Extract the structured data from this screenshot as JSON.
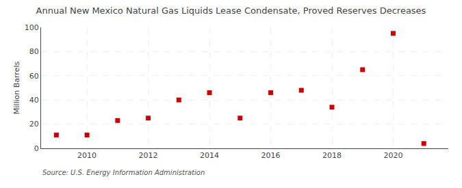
{
  "chart_data": {
    "type": "scatter",
    "title": "Annual New Mexico Natural Gas Liquids Lease Condensate, Proved Reserves Decreases",
    "ylabel": "Million Barrels",
    "annotation": "Source: U.S. Energy Information Administration",
    "x": [
      2009,
      2010,
      2011,
      2012,
      2013,
      2014,
      2015,
      2016,
      2017,
      2018,
      2019,
      2020,
      2021
    ],
    "values": [
      11,
      11,
      23,
      25,
      40,
      46,
      25,
      46,
      48,
      34,
      65,
      95,
      4
    ],
    "color": "#cc0000",
    "marker": "square",
    "xlim": [
      2008.5,
      2021.8
    ],
    "xticks": [
      2010,
      2012,
      2014,
      2016,
      2018,
      2020
    ],
    "ylim": [
      0,
      100
    ],
    "yticks": [
      0,
      20,
      40,
      60,
      80,
      100
    ],
    "grid": true
  }
}
